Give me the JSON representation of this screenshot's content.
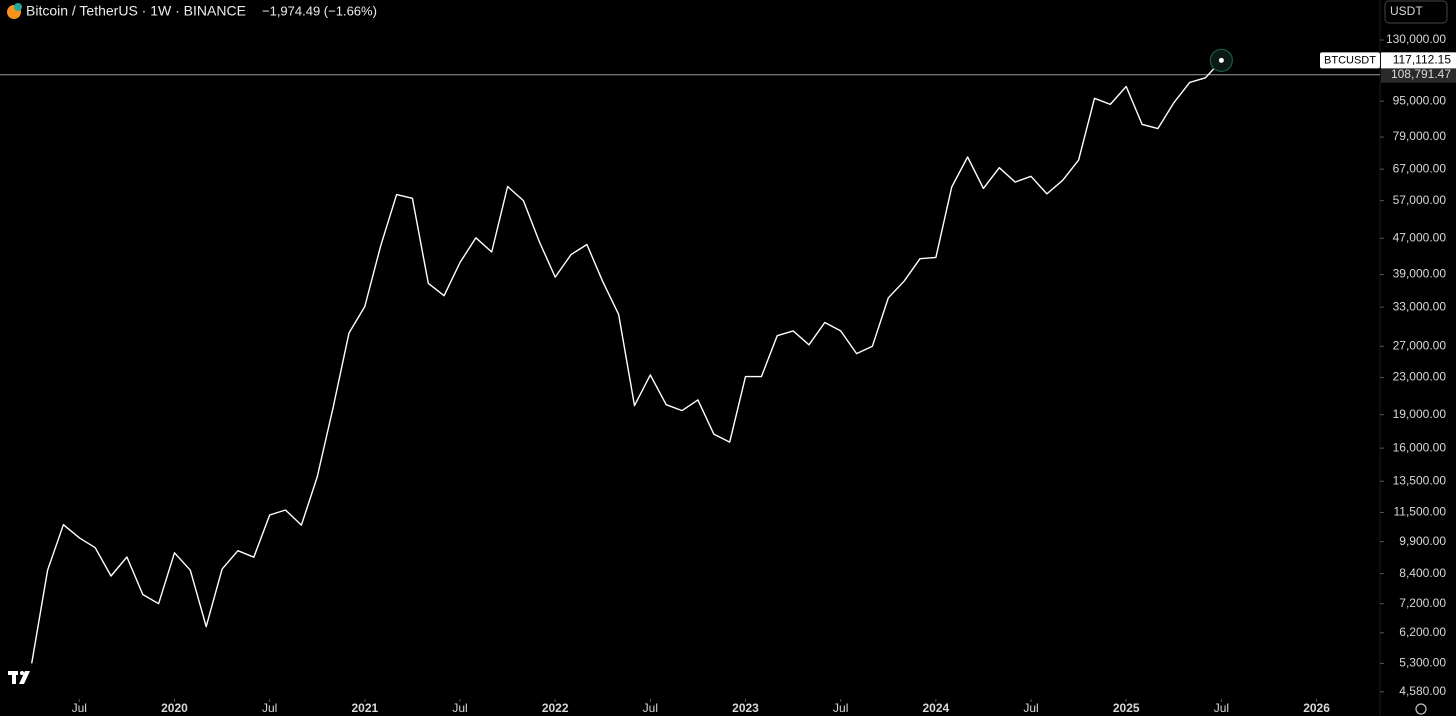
{
  "chart_data": {
    "type": "line",
    "title": "Bitcoin / TetherUS · 1W · BINANCE",
    "subtitle": "−1,974.49 (−1.66%)",
    "currency": "USDT",
    "log_scale": true,
    "x": [
      "2019-04",
      "2019-05",
      "2019-06",
      "2019-07",
      "2019-08",
      "2019-09",
      "2019-10",
      "2019-11",
      "2019-12",
      "2020-01",
      "2020-02",
      "2020-03",
      "2020-04",
      "2020-05",
      "2020-06",
      "2020-07",
      "2020-08",
      "2020-09",
      "2020-10",
      "2020-11",
      "2020-12",
      "2021-01",
      "2021-02",
      "2021-03",
      "2021-04",
      "2021-05",
      "2021-06",
      "2021-07",
      "2021-08",
      "2021-09",
      "2021-10",
      "2021-11",
      "2021-12",
      "2022-01",
      "2022-02",
      "2022-03",
      "2022-04",
      "2022-05",
      "2022-06",
      "2022-07",
      "2022-08",
      "2022-09",
      "2022-10",
      "2022-11",
      "2022-12",
      "2023-01",
      "2023-02",
      "2023-03",
      "2023-04",
      "2023-05",
      "2023-06",
      "2023-07",
      "2023-08",
      "2023-09",
      "2023-10",
      "2023-11",
      "2023-12",
      "2024-01",
      "2024-02",
      "2024-03",
      "2024-04",
      "2024-05",
      "2024-06",
      "2024-07",
      "2024-08",
      "2024-09",
      "2024-10",
      "2024-11",
      "2024-12",
      "2025-01",
      "2025-02",
      "2025-03",
      "2025-04",
      "2025-05",
      "2025-06",
      "2025-07"
    ],
    "series": [
      {
        "name": "BTCUSDT",
        "color": "#ffffff",
        "values": [
          5300,
          8550,
          10800,
          10100,
          9600,
          8300,
          9150,
          7550,
          7200,
          9350,
          8550,
          6400,
          8600,
          9450,
          9140,
          11350,
          11650,
          10780,
          13800,
          19700,
          28900,
          33100,
          45200,
          58800,
          57700,
          37300,
          35000,
          41500,
          47100,
          43800,
          61300,
          57000,
          46200,
          38500,
          43200,
          45500,
          37600,
          31800,
          19900,
          23300,
          20000,
          19400,
          20500,
          17200,
          16500,
          23100,
          23100,
          28500,
          29200,
          27200,
          30500,
          29200,
          26000,
          27000,
          34600,
          37700,
          42300,
          42600,
          61100,
          71300,
          60700,
          67500,
          62700,
          64600,
          59000,
          63300,
          70200,
          96400,
          93400,
          102400,
          84300,
          82500,
          94200,
          104600,
          107100,
          117112.15
        ]
      }
    ],
    "last_price": {
      "value": 117112.15,
      "label": "117,112.15"
    },
    "price_line": {
      "value": 108791.47,
      "label": "108,791.47"
    },
    "xlim": [
      "2019-02",
      "2026-05"
    ],
    "xticks": [
      {
        "value": "2019-07",
        "label": "Jul"
      },
      {
        "value": "2020-01",
        "label": "2020"
      },
      {
        "value": "2020-07",
        "label": "Jul"
      },
      {
        "value": "2021-01",
        "label": "2021"
      },
      {
        "value": "2021-07",
        "label": "Jul"
      },
      {
        "value": "2022-01",
        "label": "2022"
      },
      {
        "value": "2022-07",
        "label": "Jul"
      },
      {
        "value": "2023-01",
        "label": "2023"
      },
      {
        "value": "2023-07",
        "label": "Jul"
      },
      {
        "value": "2024-01",
        "label": "2024"
      },
      {
        "value": "2024-07",
        "label": "Jul"
      },
      {
        "value": "2025-01",
        "label": "2025"
      },
      {
        "value": "2025-07",
        "label": "Jul"
      },
      {
        "value": "2026-01",
        "label": "2026"
      }
    ],
    "ylim": [
      4460,
      142600
    ],
    "yticks": [
      {
        "value": 130000,
        "label": "130,000.00"
      },
      {
        "value": 95000,
        "label": "95,000.00"
      },
      {
        "value": 79000,
        "label": "79,000.00"
      },
      {
        "value": 67000,
        "label": "67,000.00"
      },
      {
        "value": 57000,
        "label": "57,000.00"
      },
      {
        "value": 47000,
        "label": "47,000.00"
      },
      {
        "value": 39000,
        "label": "39,000.00"
      },
      {
        "value": 33000,
        "label": "33,000.00"
      },
      {
        "value": 27000,
        "label": "27,000.00"
      },
      {
        "value": 23000,
        "label": "23,000.00"
      },
      {
        "value": 19000,
        "label": "19,000.00"
      },
      {
        "value": 16000,
        "label": "16,000.00"
      },
      {
        "value": 13500,
        "label": "13,500.00"
      },
      {
        "value": 11500,
        "label": "11,500.00"
      },
      {
        "value": 9900,
        "label": "9,900.00"
      },
      {
        "value": 8400,
        "label": "8,400.00"
      },
      {
        "value": 7200,
        "label": "7,200.00"
      },
      {
        "value": 6200,
        "label": "6,200.00"
      },
      {
        "value": 5300,
        "label": "5,300.00"
      },
      {
        "value": 4580,
        "label": "4,580.00"
      }
    ]
  }
}
